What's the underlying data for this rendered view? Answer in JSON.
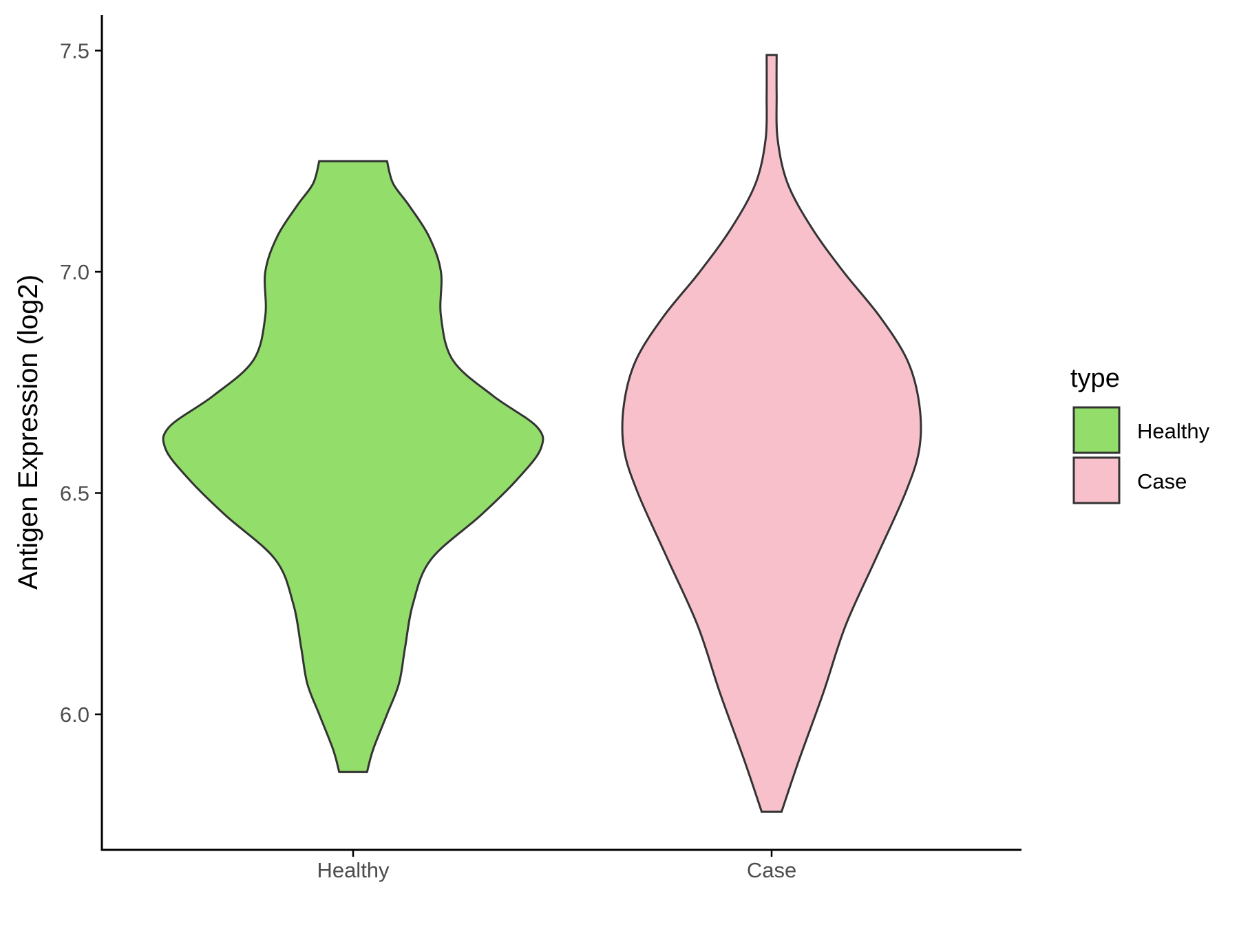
{
  "chart_data": {
    "type": "violin",
    "title": "",
    "xlabel": "",
    "ylabel": "Antigen Expression (log2)",
    "ylim": [
      5.69,
      7.58
    ],
    "y_ticks": [
      6.0,
      6.5,
      7.0,
      7.5
    ],
    "y_tick_labels": [
      "6.0",
      "6.5",
      "7.0",
      "7.5"
    ],
    "categories": [
      "Healthy",
      "Case"
    ],
    "legend": {
      "title": "type",
      "position": "right",
      "entries": [
        {
          "label": "Healthy",
          "color": "#93DD6B"
        },
        {
          "label": "Case",
          "color": "#F7C0CB"
        }
      ]
    },
    "series": [
      {
        "name": "Healthy",
        "color": "#93DD6B",
        "min": 5.87,
        "max": 7.25,
        "density_profile": [
          [
            5.87,
            0.07
          ],
          [
            5.92,
            0.1
          ],
          [
            6.0,
            0.17
          ],
          [
            6.07,
            0.23
          ],
          [
            6.15,
            0.26
          ],
          [
            6.25,
            0.3
          ],
          [
            6.35,
            0.39
          ],
          [
            6.45,
            0.64
          ],
          [
            6.53,
            0.82
          ],
          [
            6.6,
            0.94
          ],
          [
            6.65,
            0.92
          ],
          [
            6.72,
            0.7
          ],
          [
            6.8,
            0.5
          ],
          [
            6.9,
            0.44
          ],
          [
            7.0,
            0.44
          ],
          [
            7.08,
            0.38
          ],
          [
            7.15,
            0.28
          ],
          [
            7.2,
            0.2
          ],
          [
            7.25,
            0.17
          ]
        ]
      },
      {
        "name": "Case",
        "color": "#F7C0CB",
        "min": 5.78,
        "max": 7.49,
        "density_profile": [
          [
            5.78,
            0.05
          ],
          [
            5.9,
            0.14
          ],
          [
            6.05,
            0.26
          ],
          [
            6.2,
            0.37
          ],
          [
            6.35,
            0.52
          ],
          [
            6.5,
            0.67
          ],
          [
            6.6,
            0.74
          ],
          [
            6.7,
            0.74
          ],
          [
            6.8,
            0.68
          ],
          [
            6.9,
            0.54
          ],
          [
            7.0,
            0.36
          ],
          [
            7.1,
            0.2
          ],
          [
            7.2,
            0.08
          ],
          [
            7.3,
            0.03
          ],
          [
            7.4,
            0.025
          ],
          [
            7.49,
            0.025
          ]
        ]
      }
    ],
    "grid": false
  }
}
